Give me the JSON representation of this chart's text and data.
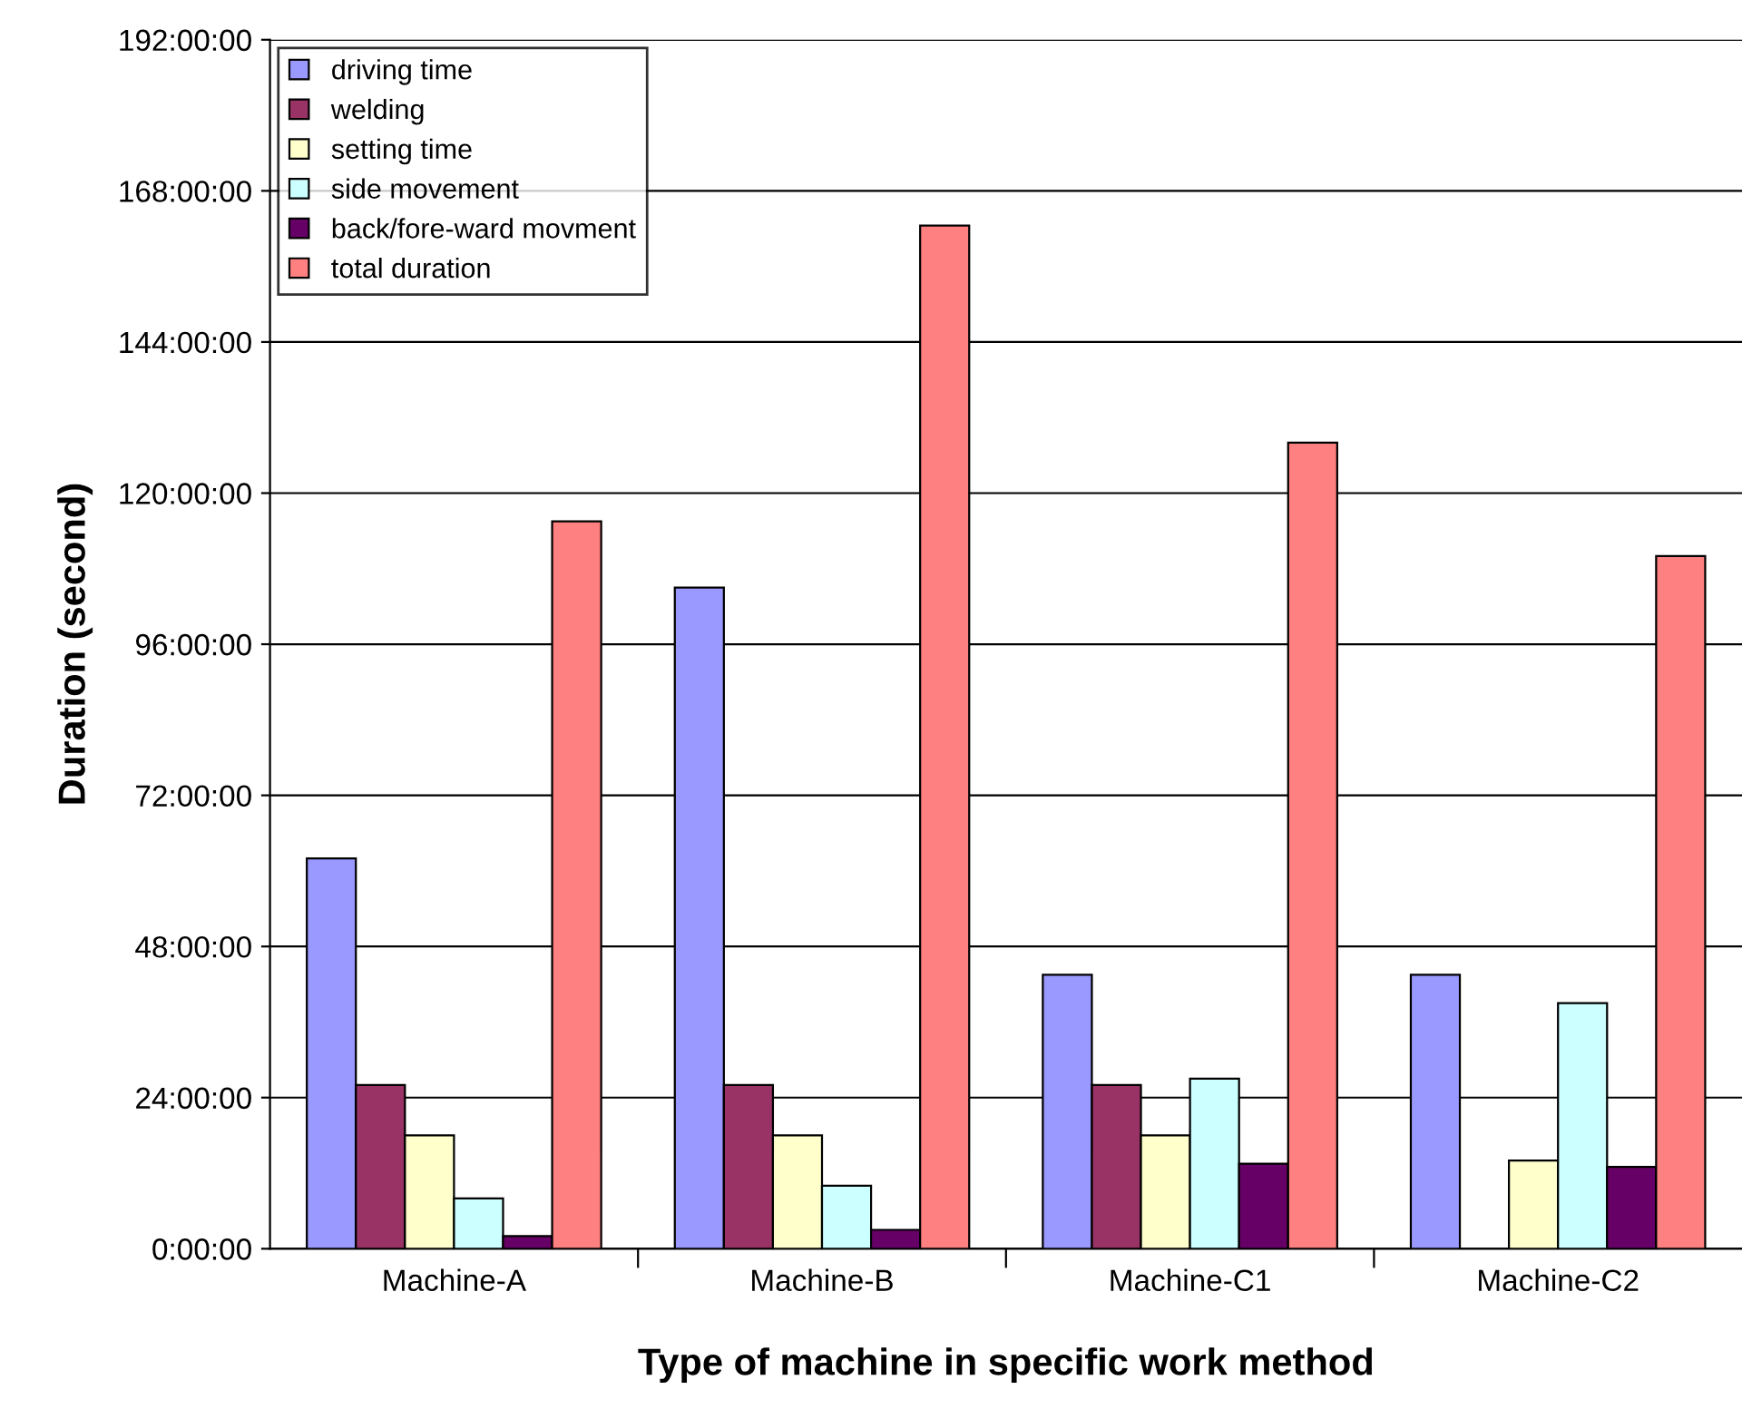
{
  "chart_data": {
    "type": "bar",
    "xlabel": "Type of machine in specific work method",
    "ylabel": "Duration (second)",
    "categories": [
      "Machine-A",
      "Machine-B",
      "Machine-C1",
      "Machine-C2"
    ],
    "series": [
      {
        "name": "driving time",
        "color": "#9999ff",
        "values": [
          62,
          105,
          43.5,
          43.5
        ]
      },
      {
        "name": "welding",
        "color": "#993366",
        "values": [
          26,
          26,
          26,
          null
        ]
      },
      {
        "name": "setting time",
        "color": "#ffffcc",
        "values": [
          18,
          18,
          18,
          14
        ]
      },
      {
        "name": "side movement",
        "color": "#ccffff",
        "values": [
          8,
          10,
          27,
          39
        ]
      },
      {
        "name": "back/fore-ward movment",
        "color": "#660066",
        "values": [
          2,
          3,
          13.5,
          13
        ]
      },
      {
        "name": "total duration",
        "color": "#ff8080",
        "values": [
          115.5,
          162.5,
          128,
          110
        ]
      }
    ],
    "ylim": [
      0,
      192
    ],
    "yticks": [
      {
        "value": 0,
        "label": "0:00:00"
      },
      {
        "value": 24,
        "label": "24:00:00"
      },
      {
        "value": 48,
        "label": "48:00:00"
      },
      {
        "value": 72,
        "label": "72:00:00"
      },
      {
        "value": 96,
        "label": "96:00:00"
      },
      {
        "value": 120,
        "label": "120:00:00"
      },
      {
        "value": 144,
        "label": "144:00:00"
      },
      {
        "value": 168,
        "label": "168:00:00"
      },
      {
        "value": 192,
        "label": "192:00:00"
      }
    ],
    "grid": "y",
    "legend": "top left"
  }
}
